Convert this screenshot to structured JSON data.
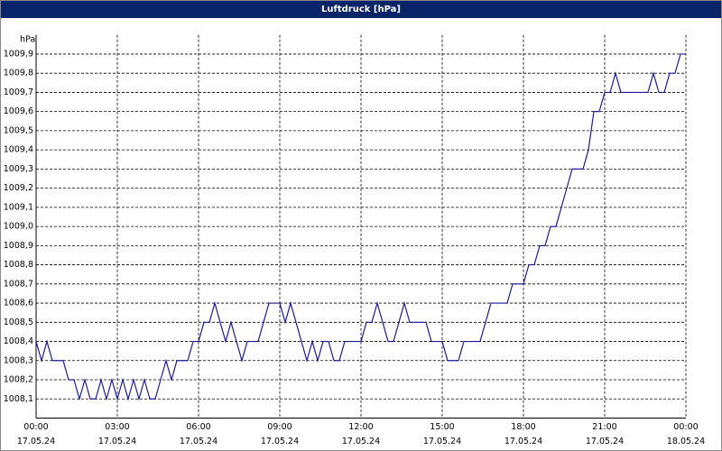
{
  "chart_data": {
    "type": "line",
    "title": "Luftdruck [hPa]",
    "y_label": "hPa",
    "x": [
      0,
      0.2,
      0.4,
      0.6,
      1.0,
      1.2,
      1.4,
      1.6,
      1.8,
      2.0,
      2.2,
      2.4,
      2.6,
      2.8,
      3.0,
      3.2,
      3.4,
      3.6,
      3.8,
      4.0,
      4.2,
      4.4,
      4.6,
      4.8,
      5.0,
      5.2,
      5.4,
      5.6,
      5.8,
      6.0,
      6.2,
      6.4,
      6.6,
      6.8,
      7.0,
      7.2,
      7.4,
      7.6,
      7.8,
      8.0,
      8.2,
      8.4,
      8.6,
      8.8,
      9.0,
      9.2,
      9.4,
      9.6,
      9.8,
      10.0,
      10.2,
      10.4,
      10.6,
      10.8,
      11.0,
      11.2,
      11.4,
      12.0,
      12.2,
      12.4,
      12.6,
      12.8,
      13.0,
      13.2,
      13.4,
      13.6,
      13.8,
      14.4,
      14.6,
      15.0,
      15.2,
      15.6,
      15.8,
      16.4,
      16.6,
      16.8,
      17.4,
      17.6,
      18.0,
      18.2,
      18.4,
      18.6,
      18.8,
      19.0,
      19.2,
      19.4,
      19.6,
      19.8,
      20.2,
      20.4,
      20.6,
      20.8,
      21.0,
      21.2,
      21.4,
      21.6,
      22.6,
      22.8,
      23.0,
      23.2,
      23.4,
      23.6,
      23.8,
      24.0
    ],
    "series": [
      {
        "name": "Luftdruck",
        "color": "#1a1aa0",
        "values": [
          1008.4,
          1008.3,
          1008.4,
          1008.3,
          1008.3,
          1008.2,
          1008.2,
          1008.1,
          1008.2,
          1008.1,
          1008.1,
          1008.2,
          1008.1,
          1008.2,
          1008.1,
          1008.2,
          1008.1,
          1008.2,
          1008.1,
          1008.2,
          1008.1,
          1008.1,
          1008.2,
          1008.3,
          1008.2,
          1008.3,
          1008.3,
          1008.3,
          1008.4,
          1008.4,
          1008.5,
          1008.5,
          1008.6,
          1008.5,
          1008.4,
          1008.5,
          1008.4,
          1008.3,
          1008.4,
          1008.4,
          1008.4,
          1008.5,
          1008.6,
          1008.6,
          1008.6,
          1008.5,
          1008.6,
          1008.5,
          1008.4,
          1008.3,
          1008.4,
          1008.3,
          1008.4,
          1008.4,
          1008.3,
          1008.3,
          1008.4,
          1008.4,
          1008.5,
          1008.5,
          1008.6,
          1008.5,
          1008.4,
          1008.4,
          1008.5,
          1008.6,
          1008.5,
          1008.5,
          1008.4,
          1008.4,
          1008.3,
          1008.3,
          1008.4,
          1008.4,
          1008.5,
          1008.6,
          1008.6,
          1008.7,
          1008.7,
          1008.8,
          1008.8,
          1008.9,
          1008.9,
          1009.0,
          1009.0,
          1009.1,
          1009.2,
          1009.3,
          1009.3,
          1009.4,
          1009.6,
          1009.6,
          1009.7,
          1009.7,
          1009.8,
          1009.7,
          1009.7,
          1009.8,
          1009.7,
          1009.7,
          1009.8,
          1009.8,
          1009.9,
          1009.9
        ]
      }
    ],
    "xlim": [
      0,
      24
    ],
    "xticks": [
      {
        "value": 0,
        "label": "00:00",
        "date": "17.05.24"
      },
      {
        "value": 3,
        "label": "03:00",
        "date": "17.05.24"
      },
      {
        "value": 6,
        "label": "06:00",
        "date": "17.05.24"
      },
      {
        "value": 9,
        "label": "09:00",
        "date": "17.05.24"
      },
      {
        "value": 12,
        "label": "12:00",
        "date": "17.05.24"
      },
      {
        "value": 15,
        "label": "15:00",
        "date": "17.05.24"
      },
      {
        "value": 18,
        "label": "18:00",
        "date": "17.05.24"
      },
      {
        "value": 21,
        "label": "21:00",
        "date": "17.05.24"
      },
      {
        "value": 24,
        "label": "00:00",
        "date": "18.05.24"
      }
    ],
    "ylim": [
      1008.0,
      1010.0
    ],
    "yticks": [
      {
        "value": 1008.1,
        "label": "1008,1"
      },
      {
        "value": 1008.2,
        "label": "1008,2"
      },
      {
        "value": 1008.3,
        "label": "1008,3"
      },
      {
        "value": 1008.4,
        "label": "1008,4"
      },
      {
        "value": 1008.5,
        "label": "1008,5"
      },
      {
        "value": 1008.6,
        "label": "1008,6"
      },
      {
        "value": 1008.7,
        "label": "1008,7"
      },
      {
        "value": 1008.8,
        "label": "1008,8"
      },
      {
        "value": 1008.9,
        "label": "1008,9"
      },
      {
        "value": 1009.0,
        "label": "1009,0"
      },
      {
        "value": 1009.1,
        "label": "1009,1"
      },
      {
        "value": 1009.2,
        "label": "1009,2"
      },
      {
        "value": 1009.3,
        "label": "1009,3"
      },
      {
        "value": 1009.4,
        "label": "1009,4"
      },
      {
        "value": 1009.5,
        "label": "1009,5"
      },
      {
        "value": 1009.6,
        "label": "1009,6"
      },
      {
        "value": 1009.7,
        "label": "1009,7"
      },
      {
        "value": 1009.8,
        "label": "1009,8"
      },
      {
        "value": 1009.9,
        "label": "1009,9"
      }
    ],
    "grid": true
  }
}
